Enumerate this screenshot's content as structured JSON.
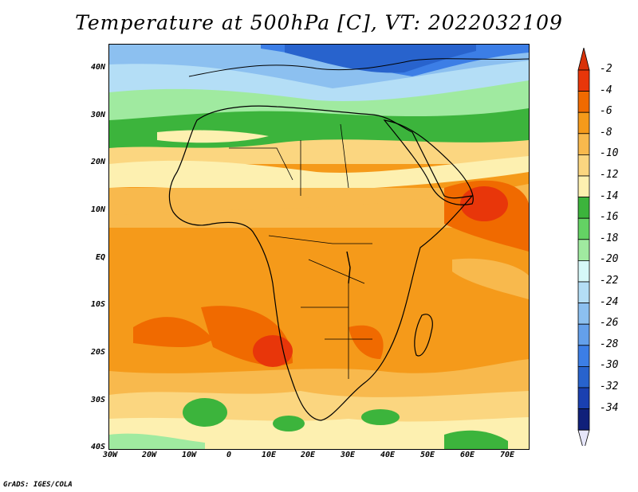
{
  "title": "Temperature at 500hPa [C], VT: 2022032109",
  "credit": "GrADS: IGES/COLA",
  "lat_ticks": [
    "40N",
    "30N",
    "20N",
    "10N",
    "EQ",
    "10S",
    "20S",
    "30S",
    "40S"
  ],
  "lon_ticks": [
    "30W",
    "20W",
    "10W",
    "0",
    "10E",
    "20E",
    "30E",
    "40E",
    "50E",
    "60E",
    "70E"
  ],
  "colorbar": {
    "labels": [
      "-2",
      "-4",
      "-6",
      "-8",
      "-10",
      "-12",
      "-14",
      "-16",
      "-18",
      "-20",
      "-22",
      "-24",
      "-26",
      "-28",
      "-30",
      "-32",
      "-34"
    ],
    "colors": [
      "#e8360a",
      "#f06a00",
      "#f59a1a",
      "#f8b94d",
      "#fbd680",
      "#fdf0b0",
      "#3cb43c",
      "#64d264",
      "#a0eaa0",
      "#d6f8f8",
      "#b4def6",
      "#8cc0f0",
      "#64a0eb",
      "#3c7ee6",
      "#2863cd",
      "#1a40b0",
      "#10207a"
    ],
    "top_color": "#d8320a",
    "bottom_color": "#e6e6fa"
  }
}
